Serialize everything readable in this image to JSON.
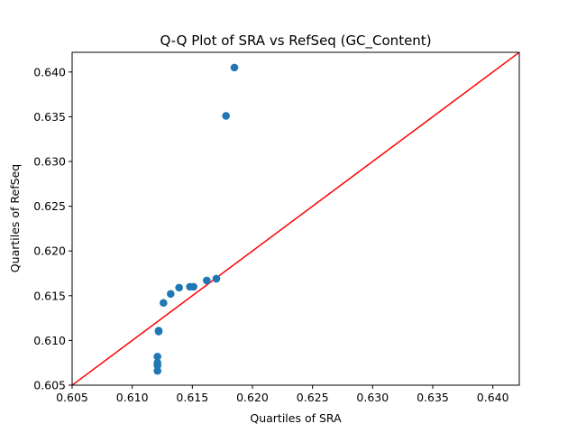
{
  "chart_data": {
    "type": "scatter",
    "title": "Q-Q Plot of SRA vs RefSeq (GC_Content)",
    "xlabel": "Quartiles of SRA",
    "ylabel": "Quartiles of RefSeq",
    "xlim": [
      0.605,
      0.6422
    ],
    "ylim": [
      0.605,
      0.6422
    ],
    "xticks": [
      "0.605",
      "0.610",
      "0.615",
      "0.620",
      "0.625",
      "0.630",
      "0.635",
      "0.640"
    ],
    "yticks": [
      "0.605",
      "0.610",
      "0.615",
      "0.620",
      "0.625",
      "0.630",
      "0.635",
      "0.640"
    ],
    "grid": false,
    "point_color": "#1f77b4",
    "reference_line": {
      "from": [
        0.605,
        0.605
      ],
      "to": [
        0.6422,
        0.6422
      ],
      "color": "#ff0000"
    },
    "points": [
      {
        "x": 0.6121,
        "y": 0.6066
      },
      {
        "x": 0.6121,
        "y": 0.6072
      },
      {
        "x": 0.6121,
        "y": 0.6075
      },
      {
        "x": 0.6121,
        "y": 0.6082
      },
      {
        "x": 0.6122,
        "y": 0.611
      },
      {
        "x": 0.6122,
        "y": 0.6111
      },
      {
        "x": 0.6126,
        "y": 0.6142
      },
      {
        "x": 0.6132,
        "y": 0.6152
      },
      {
        "x": 0.6139,
        "y": 0.6159
      },
      {
        "x": 0.6148,
        "y": 0.616
      },
      {
        "x": 0.6151,
        "y": 0.616
      },
      {
        "x": 0.6162,
        "y": 0.6167
      },
      {
        "x": 0.617,
        "y": 0.6169
      },
      {
        "x": 0.6178,
        "y": 0.6351
      },
      {
        "x": 0.6185,
        "y": 0.6405
      }
    ]
  }
}
